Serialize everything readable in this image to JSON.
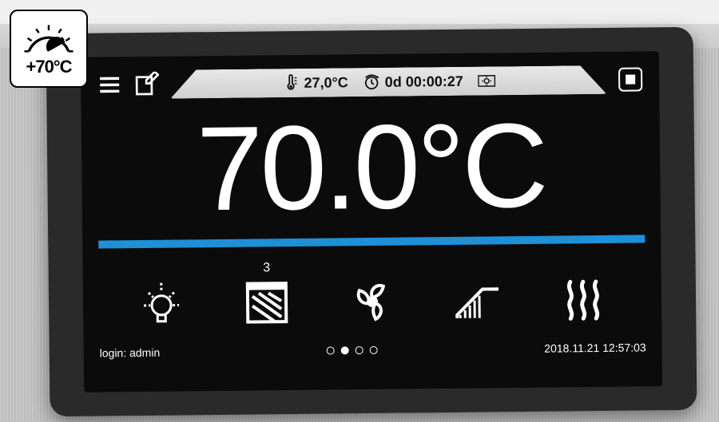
{
  "badge": {
    "label": "+70°C"
  },
  "status": {
    "setpoint": "27,0°C",
    "timer": "0d 00:00:27"
  },
  "main_temp": "70.0°C",
  "divider_color": "#1f8fd6",
  "functions": {
    "shelf_count": "3"
  },
  "footer": {
    "login_label": "login:",
    "login_user": "admin",
    "datetime": "2018.11.21  12:57:03"
  },
  "pager": {
    "total": 4,
    "active_index": 1
  },
  "colors": {
    "screen_bg": "#0b0b0b",
    "tablet_bg": "#2a2a2a",
    "accent": "#1f8fd6",
    "status_bg_top": "#e8e8e8",
    "status_bg_bot": "#cfcfcf",
    "text_light": "#ffffff",
    "text_dark": "#111111"
  }
}
